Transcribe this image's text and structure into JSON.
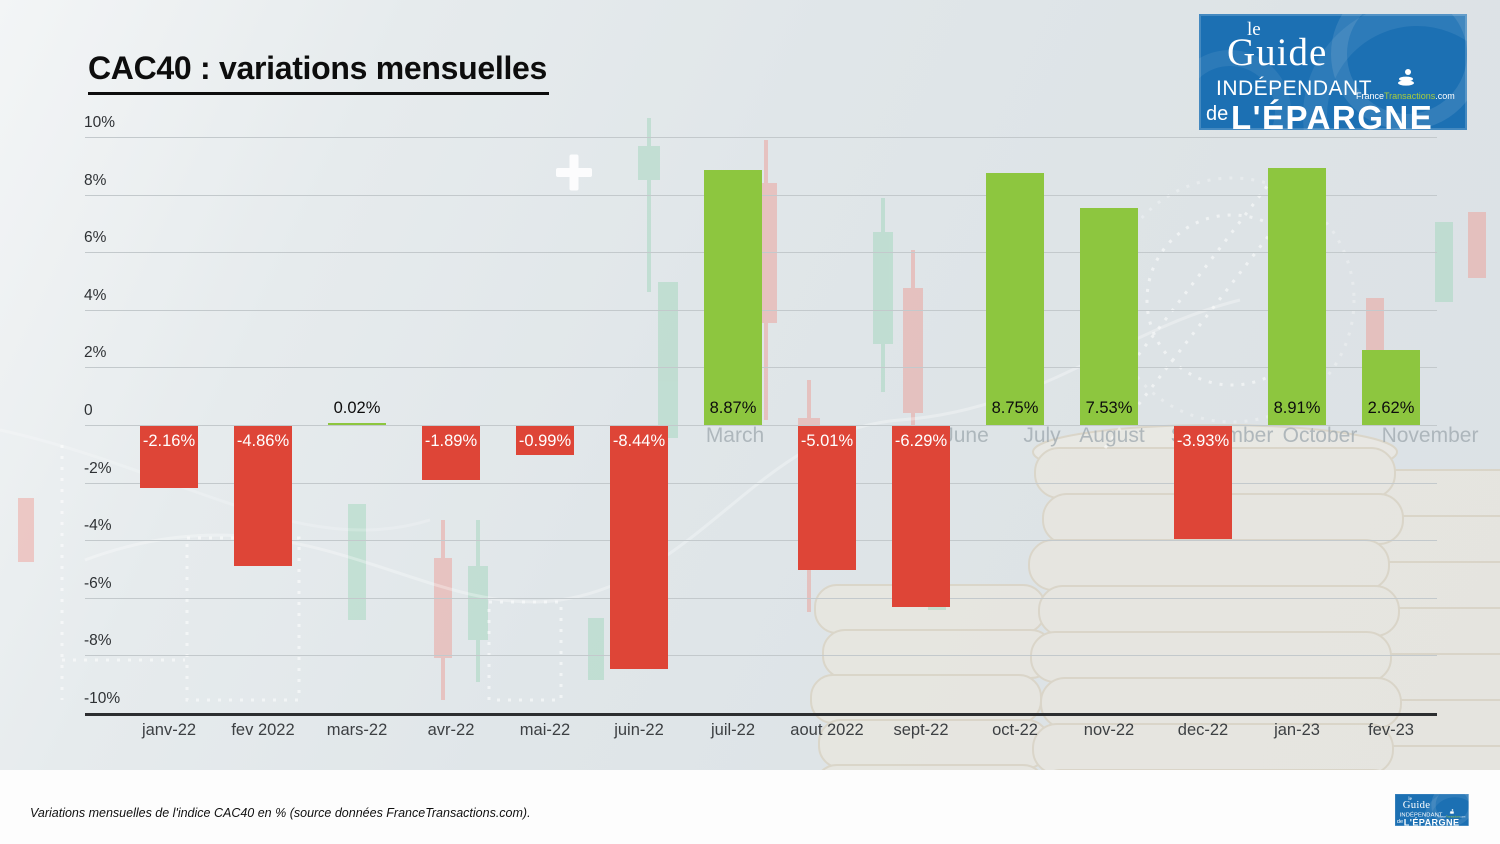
{
  "page": {
    "footer_note": "Variations mensuelles de l'indice CAC40 en % (source données FranceTransactions.com)."
  },
  "logo": {
    "le": "le",
    "guide": "Guide",
    "independant": "INDÉPENDANT",
    "de": "de",
    "epargne": "L'ÉPARGNE",
    "site_france": "France",
    "site_transactions": "Transactions",
    "site_com": ".com",
    "bg_color": "#1c70b3",
    "accent_green": "#a9cd3a"
  },
  "chart_data": {
    "type": "bar",
    "title": "CAC40 : variations mensuelles",
    "categories": [
      "janv-22",
      "fev 2022",
      "mars-22",
      "avr-22",
      "mai-22",
      "juin-22",
      "juil-22",
      "aout 2022",
      "sept-22",
      "oct-22",
      "nov-22",
      "dec-22",
      "jan-23",
      "fev-23"
    ],
    "values": [
      -2.16,
      -4.86,
      0.02,
      -1.89,
      -0.99,
      -8.44,
      8.87,
      -5.01,
      -6.29,
      8.75,
      7.53,
      -3.93,
      8.91,
      2.62
    ],
    "value_labels": [
      "-2.16%",
      "-4.86%",
      "0.02%",
      "-1.89%",
      "-0.99%",
      "-8.44%",
      "8.87%",
      "-5.01%",
      "-6.29%",
      "8.75%",
      "7.53%",
      "-3.93%",
      "8.91%",
      "2.62%"
    ],
    "xlabel": "",
    "ylabel": "",
    "ylim": [
      -10,
      10
    ],
    "grid": true,
    "legend": false,
    "y_ticks": [
      {
        "label": "10%",
        "value": 10
      },
      {
        "label": "8%",
        "value": 8
      },
      {
        "label": "6%",
        "value": 6
      },
      {
        "label": "4%",
        "value": 4
      },
      {
        "label": "2%",
        "value": 2
      },
      {
        "label": "0",
        "value": 0
      },
      {
        "label": "-2%",
        "value": -2
      },
      {
        "label": "-4%",
        "value": -4
      },
      {
        "label": "-6%",
        "value": -6
      },
      {
        "label": "-8%",
        "value": -8
      },
      {
        "label": "-10%",
        "value": -10
      }
    ],
    "positive_color": "#8dc63f",
    "negative_color": "#de4537",
    "background_watermark_months": [
      {
        "label": "March",
        "x": 735
      },
      {
        "label": "June",
        "x": 966
      },
      {
        "label": "July",
        "x": 1042
      },
      {
        "label": "August",
        "x": 1112
      },
      {
        "label": "September",
        "x": 1222
      },
      {
        "label": "October",
        "x": 1320
      },
      {
        "label": "November",
        "x": 1430
      }
    ]
  }
}
